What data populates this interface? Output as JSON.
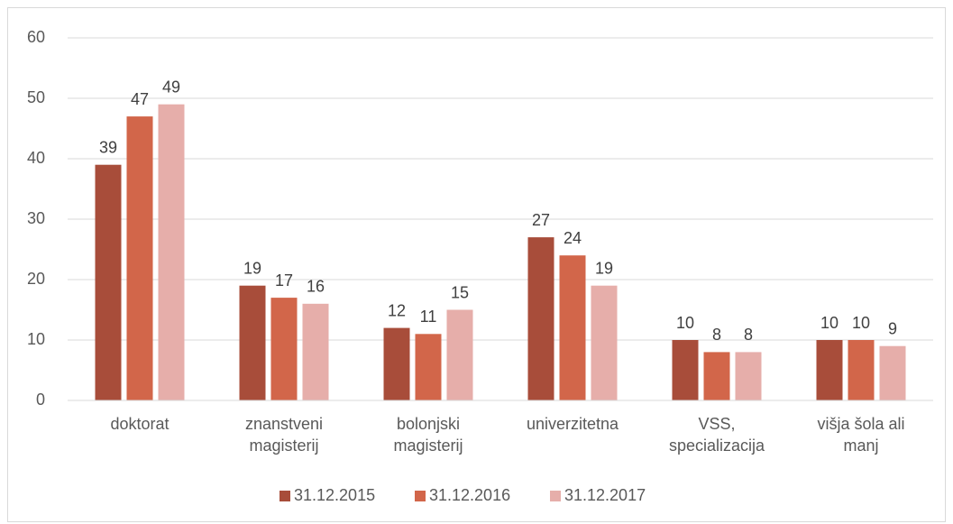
{
  "chart_data": {
    "type": "bar",
    "categories": [
      "doktorat",
      "znanstveni magisterij",
      "bolonjski magisterij",
      "univerzitetna",
      "VSS, specializacija",
      "višja šola ali manj"
    ],
    "series": [
      {
        "name": "31.12.2015",
        "color": "#a84d3a",
        "values": [
          39,
          19,
          12,
          27,
          10,
          10
        ]
      },
      {
        "name": "31.12.2016",
        "color": "#d2664a",
        "values": [
          47,
          17,
          11,
          24,
          8,
          10
        ]
      },
      {
        "name": "31.12.2017",
        "color": "#e6aeaa",
        "values": [
          49,
          16,
          15,
          19,
          8,
          9
        ]
      }
    ],
    "ylim": [
      0,
      60
    ],
    "yticks": [
      0,
      10,
      20,
      30,
      40,
      50,
      60
    ],
    "grid": true,
    "legend": "bottom"
  }
}
